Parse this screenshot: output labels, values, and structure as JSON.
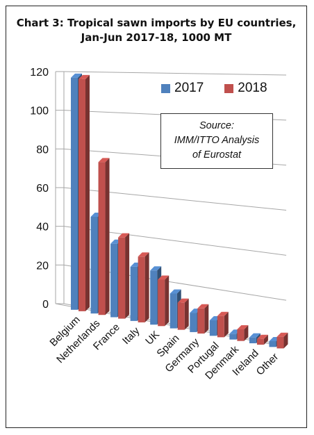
{
  "chart_data": {
    "type": "bar",
    "title": "Chart 3: Tropical sawn imports by EU countries, Jan-Jun 2017-18, 1000 MT",
    "categories": [
      "Belgium",
      "Netherlands",
      "France",
      "Italy",
      "UK",
      "Spain",
      "Germany",
      "Portugal",
      "Denmark",
      "Ireland",
      "Other"
    ],
    "series": [
      {
        "name": "2017",
        "color": "#4f81bd",
        "values": [
          120,
          50,
          38,
          28,
          28,
          18,
          10,
          8,
          3,
          3,
          3
        ]
      },
      {
        "name": "2018",
        "color": "#c0504d",
        "values": [
          120,
          79,
          42,
          34,
          24,
          14,
          13,
          11,
          6,
          3,
          6
        ]
      }
    ],
    "yticks": [
      0,
      20,
      40,
      60,
      80,
      100,
      120
    ],
    "ylim": [
      0,
      120
    ],
    "grid": true,
    "legend_position": "top-right",
    "annotation": [
      "Source:",
      "IMM/ITTO Analysis",
      "of Eurostat"
    ]
  }
}
